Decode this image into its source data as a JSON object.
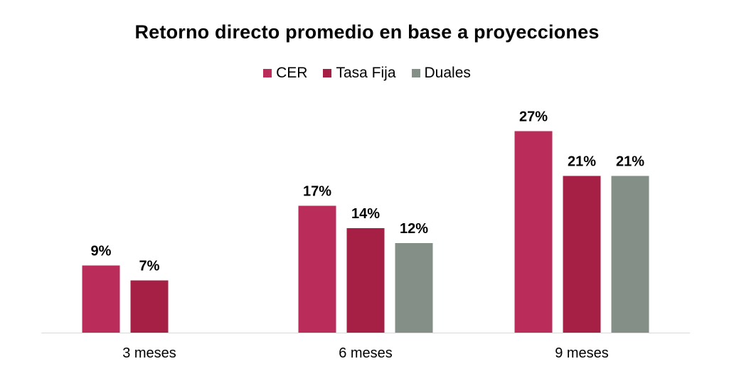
{
  "chart_data": {
    "type": "bar",
    "title": "Retorno directo promedio en base a proyecciones",
    "categories": [
      "3 meses",
      "6 meses",
      "9 meses"
    ],
    "series": [
      {
        "name": "CER",
        "color": "#BA2D5B",
        "values": [
          9,
          17,
          27
        ],
        "labels": [
          "9%",
          "17%",
          "27%"
        ]
      },
      {
        "name": "Tasa Fija",
        "color": "#A62045",
        "values": [
          7,
          14,
          21
        ],
        "labels": [
          "7%",
          "14%",
          "21%"
        ]
      },
      {
        "name": "Duales",
        "color": "#849087",
        "values": [
          null,
          12,
          21
        ],
        "labels": [
          null,
          "12%",
          "21%"
        ]
      }
    ],
    "ylim": [
      0,
      30
    ],
    "grid": false,
    "legend": "top-center"
  }
}
